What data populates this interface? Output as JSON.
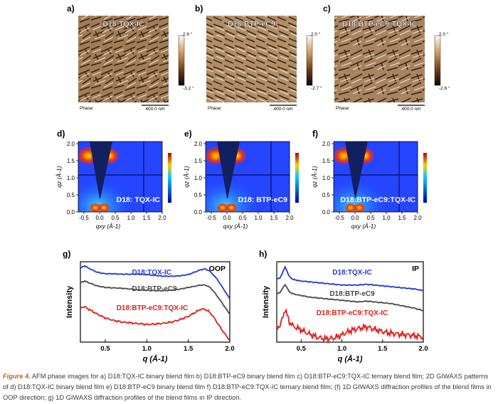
{
  "figure": {
    "caption_label": "Figure 4.",
    "caption_text": " AFM phase images for a) D18:TQX-IC binary blend film b) D18:BTP-eC9 binary blend film c) D18:BTP-eC9:TQX-IC ternary blend film; 2D GIWAXS patterns of d) D18:TQX-IC binary blend film e) D18:BTP-eC9 binary blend film f) D18:BTP-eC9:TQX-IC ternary blend film; (f) 1D GIWAXS diffraction profiles of the blend films in OOP direction; g) 1D GIWAXS diffraction profiles of the blend films in IP direction."
  },
  "afm_panels": [
    {
      "letter": "a)",
      "title": "D18:TQX-IC",
      "scale_top": "2.6 °",
      "scale_bottom": "-3.2 °",
      "phase_label": "Phase",
      "scalebar_label": "400.0 nm"
    },
    {
      "letter": "b)",
      "title": "D18:BTP-eC9",
      "scale_top": "2.0 °",
      "scale_bottom": "-2.7 °",
      "phase_label": "Phase",
      "scalebar_label": "400.0 nm"
    },
    {
      "letter": "c)",
      "title": "D18:BTP-eC9:TQX-IC",
      "scale_top": "2.0 °",
      "scale_bottom": "-2.6 °",
      "phase_label": "Phase",
      "scalebar_label": "400.0 nm"
    }
  ],
  "giwaxs_panels": [
    {
      "letter": "d)",
      "label": "D18: TQX-IC"
    },
    {
      "letter": "e)",
      "label": "D18: BTP-eC9"
    },
    {
      "letter": "f)",
      "label": "D18:BTP-eC9:TQX-IC"
    }
  ],
  "giwaxs_axes": {
    "xlabel": "qxy (Å-1)",
    "ylabel": "qz (Å-1)",
    "x_ticks": [
      "-0.5",
      "0.0",
      "0.5",
      "1.0",
      "1.5",
      "2.0"
    ],
    "y_ticks": [
      "0.0",
      "0.5",
      "1.0",
      "1.5",
      "2.0"
    ]
  },
  "chart_data": [
    {
      "type": "line",
      "panel": "g)",
      "title": "OOP",
      "xlabel": "q (Å-1)",
      "ylabel": "Intensity",
      "xlim": [
        0.2,
        2.0
      ],
      "ylim": [
        0,
        10
      ],
      "x_ticks": [
        "0.5",
        "1.0",
        "1.5",
        "2.0"
      ],
      "series": [
        {
          "name": "D18:TQX-IC",
          "color": "#2237d8",
          "x": [
            0.2,
            0.25,
            0.3,
            0.4,
            0.5,
            0.6,
            0.7,
            0.8,
            0.9,
            1.0,
            1.1,
            1.2,
            1.3,
            1.4,
            1.5,
            1.6,
            1.65,
            1.7,
            1.75,
            1.8,
            1.85,
            1.9,
            1.95,
            2.0
          ],
          "y": [
            9.2,
            9.5,
            9.2,
            8.7,
            8.5,
            8.5,
            8.45,
            8.45,
            8.45,
            8.4,
            8.3,
            8.2,
            8.2,
            8.25,
            8.4,
            8.8,
            9.0,
            9.1,
            8.9,
            8.4,
            7.8,
            7.0,
            6.2,
            5.4
          ]
        },
        {
          "name": "D18:BTP-eC9",
          "color": "#4a4a4a",
          "x": [
            0.2,
            0.25,
            0.3,
            0.4,
            0.5,
            0.6,
            0.7,
            0.8,
            0.9,
            1.0,
            1.1,
            1.2,
            1.3,
            1.4,
            1.5,
            1.6,
            1.65,
            1.7,
            1.75,
            1.8,
            1.85,
            1.9,
            1.95,
            2.0
          ],
          "y": [
            7.4,
            7.6,
            7.4,
            7.0,
            6.8,
            6.75,
            6.7,
            6.6,
            6.5,
            6.45,
            6.4,
            6.4,
            6.45,
            6.6,
            6.8,
            7.0,
            7.1,
            7.1,
            6.9,
            6.4,
            5.7,
            5.0,
            4.2,
            3.5
          ]
        },
        {
          "name": "D18:BTP-eC9:TQX-IC",
          "color": "#e0201c",
          "x": [
            0.2,
            0.25,
            0.3,
            0.4,
            0.5,
            0.6,
            0.7,
            0.8,
            0.9,
            1.0,
            1.1,
            1.2,
            1.3,
            1.4,
            1.5,
            1.6,
            1.65,
            1.7,
            1.75,
            1.8,
            1.85,
            1.9,
            1.95,
            2.0
          ],
          "y": [
            4.3,
            4.4,
            4.1,
            3.5,
            3.0,
            2.7,
            2.5,
            2.4,
            2.3,
            2.2,
            2.25,
            2.35,
            2.5,
            2.8,
            3.2,
            3.8,
            4.1,
            4.1,
            3.8,
            3.2,
            2.4,
            1.6,
            0.9,
            0.2
          ]
        }
      ]
    },
    {
      "type": "line",
      "panel": "h)",
      "title": "IP",
      "xlabel": "q (Å-1)",
      "ylabel": "Intensity",
      "xlim": [
        0.2,
        2.0
      ],
      "ylim": [
        0,
        10
      ],
      "x_ticks": [
        "0.5",
        "1.0",
        "1.5",
        "2.0"
      ],
      "series": [
        {
          "name": "D18:TQX-IC",
          "color": "#2237d8",
          "x": [
            0.2,
            0.24,
            0.28,
            0.3,
            0.32,
            0.35,
            0.4,
            0.5,
            0.6,
            0.7,
            0.8,
            0.9,
            1.0,
            1.1,
            1.2,
            1.3,
            1.4,
            1.5,
            1.6,
            1.7,
            1.8,
            1.9,
            2.0
          ],
          "y": [
            7.8,
            8.0,
            8.8,
            9.4,
            9.0,
            8.2,
            7.8,
            7.6,
            7.5,
            7.4,
            7.3,
            7.2,
            7.1,
            7.1,
            7.1,
            7.2,
            7.1,
            7.0,
            6.9,
            6.8,
            6.7,
            6.6,
            6.4
          ]
        },
        {
          "name": "D18:BTP-eC9",
          "color": "#4a4a4a",
          "x": [
            0.2,
            0.24,
            0.28,
            0.3,
            0.32,
            0.35,
            0.4,
            0.5,
            0.6,
            0.7,
            0.8,
            0.9,
            1.0,
            1.1,
            1.2,
            1.3,
            1.4,
            1.5,
            1.6,
            1.7,
            1.8,
            1.9,
            2.0
          ],
          "y": [
            6.0,
            6.2,
            6.8,
            7.2,
            6.9,
            6.3,
            6.0,
            5.8,
            5.6,
            5.5,
            5.4,
            5.3,
            5.2,
            5.1,
            5.0,
            5.1,
            5.0,
            4.9,
            4.8,
            4.6,
            4.4,
            4.2,
            3.9
          ]
        },
        {
          "name": "D18:BTP-eC9:TQX-IC",
          "color": "#e0201c",
          "x": [
            0.2,
            0.24,
            0.28,
            0.3,
            0.32,
            0.35,
            0.4,
            0.5,
            0.6,
            0.7,
            0.8,
            0.9,
            1.0,
            1.1,
            1.2,
            1.3,
            1.4,
            1.5,
            1.6,
            1.7,
            1.8,
            1.9,
            2.0
          ],
          "y": [
            1.8,
            2.1,
            3.2,
            4.2,
            3.6,
            2.6,
            2.0,
            1.5,
            1.0,
            0.6,
            0.4,
            0.5,
            0.9,
            1.4,
            1.7,
            1.9,
            1.6,
            1.3,
            1.1,
            1.0,
            0.9,
            0.8,
            0.6
          ]
        }
      ]
    }
  ]
}
